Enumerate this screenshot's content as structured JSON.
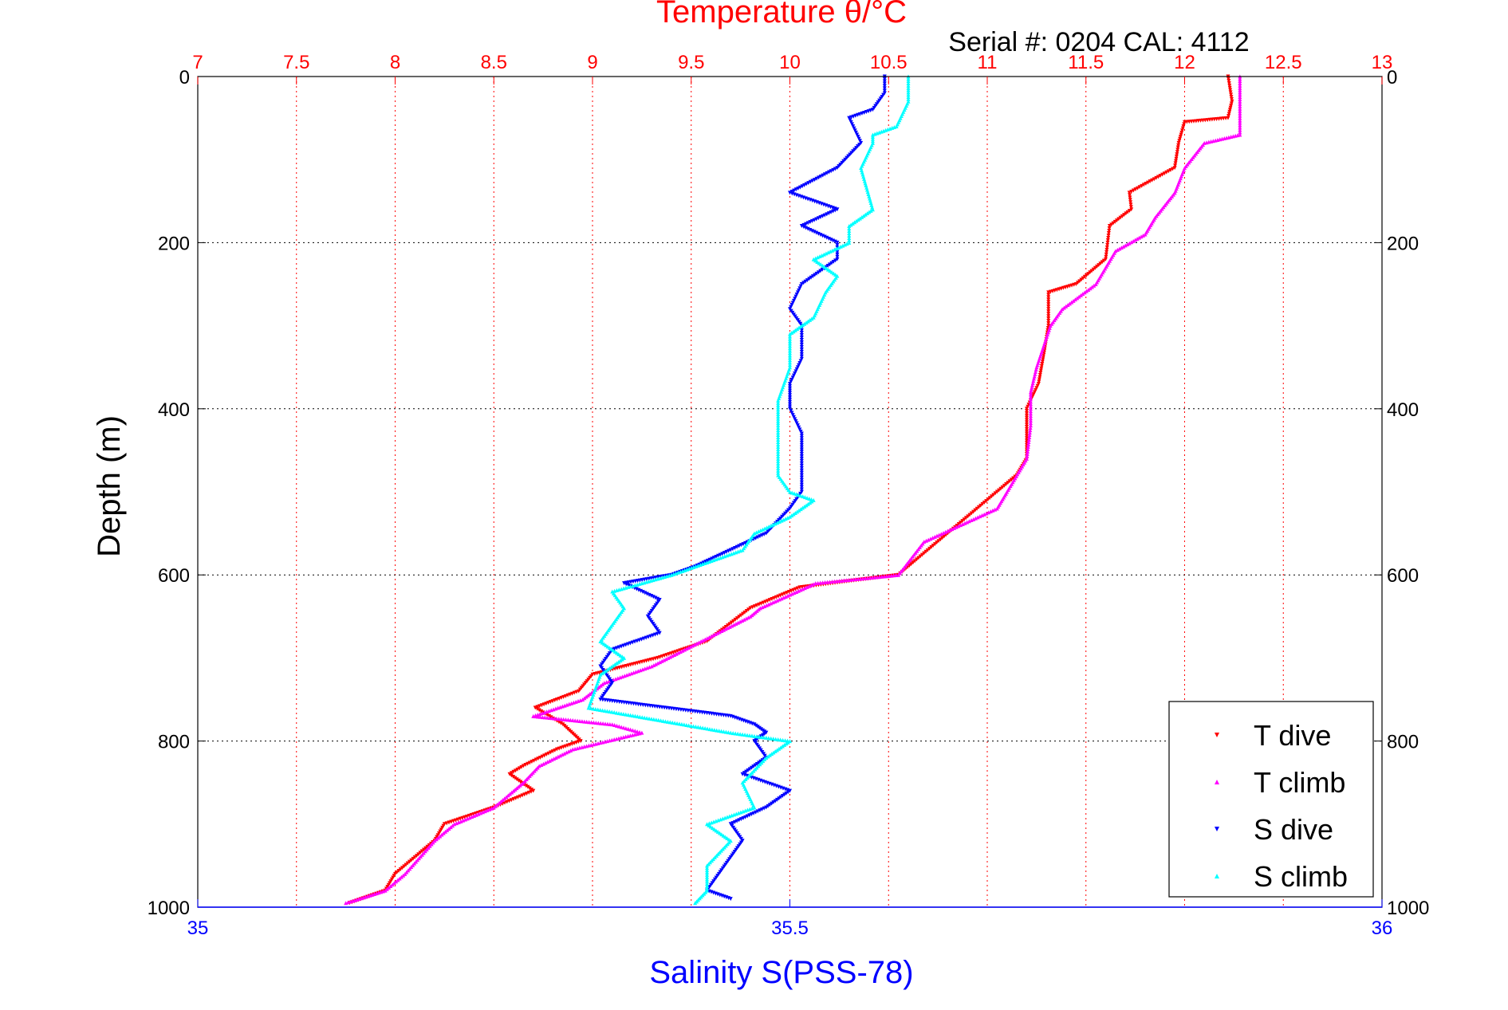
{
  "chart_data": {
    "type": "scatter",
    "title": "Temperature θ/°C",
    "subtitle": "Serial #: 0204  CAL: 4112",
    "ylabel": "Depth (m)",
    "xlabel_bottom": "Salinity S(PSS-78)",
    "y_axis": {
      "range": [
        0,
        1000
      ],
      "reversed": true,
      "ticks": [
        0,
        200,
        400,
        600,
        800,
        1000
      ],
      "tick_labels": [
        "0",
        "200",
        "400",
        "600",
        "800",
        "1000"
      ]
    },
    "top_axis": {
      "quantity": "temperature",
      "range": [
        7,
        13
      ],
      "ticks": [
        7,
        7.5,
        8,
        8.5,
        9,
        9.5,
        10,
        10.5,
        11,
        11.5,
        12,
        12.5,
        13
      ],
      "tick_labels": [
        "7",
        "7.5",
        "8",
        "8.5",
        "9",
        "9.5",
        "10",
        "10.5",
        "11",
        "11.5",
        "12",
        "12.5",
        "13"
      ]
    },
    "bottom_axis": {
      "quantity": "salinity",
      "range": [
        35,
        36
      ],
      "ticks": [
        35,
        35.5,
        36
      ],
      "tick_labels": [
        "35",
        "35.5",
        "36"
      ]
    },
    "grid": true,
    "legend_position": "bottom-right",
    "colors": {
      "title": "#ff0000",
      "salinity_axis": "#0000ff",
      "temperature_grid": "#ff0000",
      "depth_grid": "#000000"
    },
    "series": [
      {
        "name": "T dive",
        "axis": "temperature",
        "color": "#ff0000",
        "marker": "triangle-down",
        "points": [
          [
            12.22,
            0
          ],
          [
            12.24,
            30
          ],
          [
            12.22,
            50
          ],
          [
            12.0,
            55
          ],
          [
            11.97,
            80
          ],
          [
            11.95,
            110
          ],
          [
            11.72,
            140
          ],
          [
            11.73,
            160
          ],
          [
            11.62,
            180
          ],
          [
            11.6,
            220
          ],
          [
            11.45,
            250
          ],
          [
            11.31,
            260
          ],
          [
            11.31,
            300
          ],
          [
            11.29,
            330
          ],
          [
            11.26,
            370
          ],
          [
            11.2,
            400
          ],
          [
            11.2,
            430
          ],
          [
            11.2,
            460
          ],
          [
            11.15,
            480
          ],
          [
            11.05,
            500
          ],
          [
            10.8,
            550
          ],
          [
            10.55,
            600
          ],
          [
            10.05,
            615
          ],
          [
            9.8,
            640
          ],
          [
            9.58,
            680
          ],
          [
            9.33,
            700
          ],
          [
            9.0,
            720
          ],
          [
            8.93,
            740
          ],
          [
            8.71,
            760
          ],
          [
            8.85,
            780
          ],
          [
            8.94,
            800
          ],
          [
            8.82,
            810
          ],
          [
            8.65,
            830
          ],
          [
            8.58,
            840
          ],
          [
            8.7,
            860
          ],
          [
            8.5,
            880
          ],
          [
            8.25,
            900
          ],
          [
            8.2,
            920
          ],
          [
            8.0,
            960
          ],
          [
            7.95,
            980
          ],
          [
            7.77,
            995
          ]
        ]
      },
      {
        "name": "T climb",
        "axis": "temperature",
        "color": "#ff00ff",
        "marker": "triangle-up",
        "points": [
          [
            12.28,
            0
          ],
          [
            12.28,
            30
          ],
          [
            12.28,
            70
          ],
          [
            12.1,
            80
          ],
          [
            12.0,
            110
          ],
          [
            11.95,
            140
          ],
          [
            11.85,
            170
          ],
          [
            11.8,
            190
          ],
          [
            11.65,
            210
          ],
          [
            11.55,
            250
          ],
          [
            11.38,
            280
          ],
          [
            11.32,
            300
          ],
          [
            11.25,
            350
          ],
          [
            11.22,
            380
          ],
          [
            11.22,
            420
          ],
          [
            11.2,
            460
          ],
          [
            11.1,
            500
          ],
          [
            11.05,
            520
          ],
          [
            10.68,
            560
          ],
          [
            10.55,
            600
          ],
          [
            10.13,
            610
          ],
          [
            9.85,
            640
          ],
          [
            9.8,
            650
          ],
          [
            9.55,
            680
          ],
          [
            9.3,
            710
          ],
          [
            9.06,
            730
          ],
          [
            8.95,
            750
          ],
          [
            8.7,
            770
          ],
          [
            9.1,
            780
          ],
          [
            9.25,
            790
          ],
          [
            8.9,
            810
          ],
          [
            8.73,
            830
          ],
          [
            8.65,
            850
          ],
          [
            8.6,
            860
          ],
          [
            8.5,
            880
          ],
          [
            8.3,
            900
          ],
          [
            8.2,
            920
          ],
          [
            8.05,
            960
          ],
          [
            7.95,
            980
          ],
          [
            7.75,
            995
          ]
        ]
      },
      {
        "name": "S dive",
        "axis": "salinity",
        "color": "#0000ff",
        "marker": "triangle-down",
        "points": [
          [
            35.58,
            0
          ],
          [
            35.58,
            20
          ],
          [
            35.57,
            40
          ],
          [
            35.55,
            50
          ],
          [
            35.56,
            80
          ],
          [
            35.54,
            110
          ],
          [
            35.5,
            140
          ],
          [
            35.54,
            160
          ],
          [
            35.51,
            180
          ],
          [
            35.54,
            200
          ],
          [
            35.54,
            220
          ],
          [
            35.51,
            250
          ],
          [
            35.5,
            280
          ],
          [
            35.51,
            300
          ],
          [
            35.51,
            340
          ],
          [
            35.5,
            370
          ],
          [
            35.5,
            400
          ],
          [
            35.51,
            430
          ],
          [
            35.51,
            460
          ],
          [
            35.51,
            500
          ],
          [
            35.5,
            520
          ],
          [
            35.48,
            550
          ],
          [
            35.45,
            570
          ],
          [
            35.42,
            590
          ],
          [
            35.4,
            600
          ],
          [
            35.36,
            610
          ],
          [
            35.39,
            630
          ],
          [
            35.38,
            650
          ],
          [
            35.39,
            670
          ],
          [
            35.35,
            690
          ],
          [
            35.34,
            710
          ],
          [
            35.35,
            730
          ],
          [
            35.34,
            750
          ],
          [
            35.45,
            770
          ],
          [
            35.47,
            780
          ],
          [
            35.48,
            790
          ],
          [
            35.47,
            800
          ],
          [
            35.48,
            820
          ],
          [
            35.46,
            840
          ],
          [
            35.5,
            860
          ],
          [
            35.48,
            880
          ],
          [
            35.45,
            900
          ],
          [
            35.46,
            920
          ],
          [
            35.45,
            940
          ],
          [
            35.44,
            960
          ],
          [
            35.43,
            980
          ],
          [
            35.45,
            990
          ]
        ]
      },
      {
        "name": "S climb",
        "axis": "salinity",
        "color": "#00ffff",
        "marker": "triangle-up",
        "points": [
          [
            35.6,
            0
          ],
          [
            35.6,
            30
          ],
          [
            35.59,
            60
          ],
          [
            35.57,
            70
          ],
          [
            35.57,
            80
          ],
          [
            35.56,
            110
          ],
          [
            35.57,
            160
          ],
          [
            35.55,
            180
          ],
          [
            35.55,
            200
          ],
          [
            35.52,
            220
          ],
          [
            35.54,
            240
          ],
          [
            35.53,
            260
          ],
          [
            35.52,
            290
          ],
          [
            35.5,
            310
          ],
          [
            35.5,
            350
          ],
          [
            35.49,
            390
          ],
          [
            35.49,
            420
          ],
          [
            35.49,
            460
          ],
          [
            35.49,
            480
          ],
          [
            35.5,
            500
          ],
          [
            35.52,
            510
          ],
          [
            35.5,
            530
          ],
          [
            35.47,
            550
          ],
          [
            35.46,
            570
          ],
          [
            35.4,
            600
          ],
          [
            35.35,
            620
          ],
          [
            35.36,
            640
          ],
          [
            35.35,
            660
          ],
          [
            35.34,
            680
          ],
          [
            35.36,
            700
          ],
          [
            35.34,
            720
          ],
          [
            35.33,
            760
          ],
          [
            35.45,
            790
          ],
          [
            35.5,
            800
          ],
          [
            35.48,
            820
          ],
          [
            35.46,
            850
          ],
          [
            35.47,
            880
          ],
          [
            35.43,
            900
          ],
          [
            35.45,
            920
          ],
          [
            35.43,
            950
          ],
          [
            35.43,
            980
          ],
          [
            35.42,
            995
          ]
        ]
      }
    ]
  }
}
